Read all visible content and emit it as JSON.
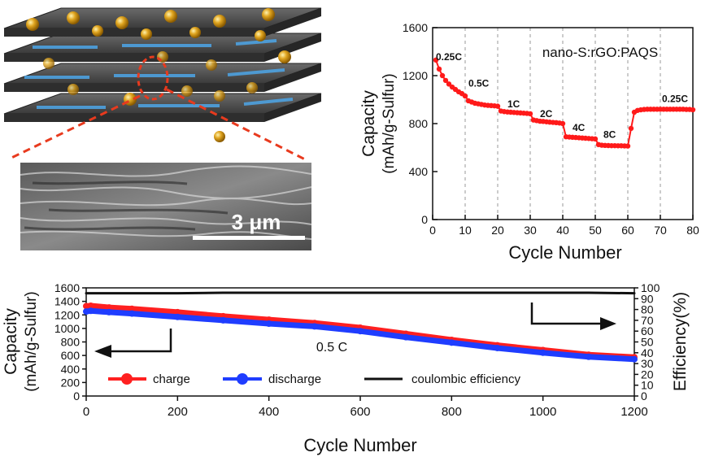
{
  "sem": {
    "scale_label": "3 μm"
  },
  "chart_data": [
    {
      "type": "line",
      "title": "",
      "annotation": "nano-S:rGO:PAQS",
      "xlabel": "Cycle Number",
      "ylabel_line1": "Capacity",
      "ylabel_line2": "(mAh/g-Sulfur)",
      "xlim": [
        0,
        80
      ],
      "ylim": [
        0,
        1600
      ],
      "xticks": [
        0,
        10,
        20,
        30,
        40,
        50,
        60,
        70,
        80
      ],
      "yticks": [
        0,
        400,
        800,
        1200,
        1600
      ],
      "grid": false,
      "color": "#ff1a1a",
      "rate_dividers": [
        10,
        20,
        30,
        40,
        50,
        60,
        70
      ],
      "rate_labels": [
        {
          "text": "0.25C",
          "x": 1,
          "y": 1330
        },
        {
          "text": "0.5C",
          "x": 11,
          "y": 1110
        },
        {
          "text": "1C",
          "x": 23,
          "y": 935
        },
        {
          "text": "2C",
          "x": 33,
          "y": 855
        },
        {
          "text": "4C",
          "x": 43,
          "y": 740
        },
        {
          "text": "8C",
          "x": 52.5,
          "y": 680
        },
        {
          "text": "0.25C",
          "x": 70.5,
          "y": 980
        }
      ],
      "series": [
        {
          "x": [
            1,
            2,
            3,
            4,
            5,
            6,
            7,
            8,
            9,
            10,
            11,
            12,
            13,
            14,
            15,
            16,
            17,
            18,
            19,
            20,
            21,
            22,
            23,
            24,
            25,
            26,
            27,
            28,
            29,
            30,
            31,
            32,
            33,
            34,
            35,
            36,
            37,
            38,
            39,
            40,
            41,
            42,
            43,
            44,
            45,
            46,
            47,
            48,
            49,
            50,
            51,
            52,
            53,
            54,
            55,
            56,
            57,
            58,
            59,
            60,
            61,
            62,
            63,
            64,
            65,
            66,
            67,
            68,
            69,
            70,
            71,
            72,
            73,
            74,
            75,
            76,
            77,
            78,
            79,
            80
          ],
          "y": [
            1330,
            1255,
            1200,
            1160,
            1130,
            1105,
            1085,
            1065,
            1050,
            1030,
            990,
            980,
            970,
            965,
            960,
            955,
            952,
            950,
            948,
            945,
            905,
            900,
            897,
            895,
            893,
            891,
            889,
            887,
            885,
            882,
            830,
            825,
            820,
            818,
            815,
            812,
            810,
            808,
            805,
            800,
            690,
            688,
            686,
            684,
            682,
            680,
            678,
            676,
            674,
            672,
            625,
            620,
            618,
            617,
            616,
            616,
            615,
            615,
            614,
            613,
            760,
            895,
            910,
            915,
            918,
            920,
            920,
            920,
            920,
            920,
            920,
            920,
            920,
            920,
            920,
            920,
            920,
            918,
            918,
            915
          ]
        }
      ]
    },
    {
      "type": "line",
      "title": "",
      "annotation": "0.5 C",
      "xlabel": "Cycle Number",
      "ylabel_left_line1": "Capacity",
      "ylabel_left_line2": "(mAh/g-Sulfur)",
      "ylabel_right": "Efficiency(%)",
      "xlim": [
        0,
        1200
      ],
      "ylim_left": [
        0,
        1600
      ],
      "ylim_right": [
        0,
        100
      ],
      "xticks": [
        0,
        200,
        400,
        600,
        800,
        1000,
        1200
      ],
      "yticks_left": [
        0,
        200,
        400,
        600,
        800,
        1000,
        1200,
        1400,
        1600
      ],
      "yticks_right": [
        0,
        10,
        20,
        30,
        40,
        50,
        60,
        70,
        80,
        90,
        100
      ],
      "grid": false,
      "legend_position": "bottom",
      "series": [
        {
          "name": "charge",
          "axis": "left",
          "color": "#ff2020",
          "x": [
            0,
            10,
            50,
            100,
            200,
            300,
            400,
            500,
            600,
            700,
            800,
            900,
            1000,
            1100,
            1200
          ],
          "y": [
            1330,
            1335,
            1310,
            1290,
            1240,
            1180,
            1130,
            1080,
            1010,
            920,
            830,
            750,
            680,
            610,
            575
          ]
        },
        {
          "name": "discharge",
          "axis": "left",
          "color": "#1f3dff",
          "x": [
            0,
            10,
            50,
            100,
            200,
            300,
            400,
            500,
            600,
            700,
            800,
            900,
            1000,
            1100,
            1200
          ],
          "y": [
            1250,
            1260,
            1240,
            1220,
            1170,
            1120,
            1070,
            1030,
            960,
            870,
            790,
            710,
            640,
            580,
            545
          ]
        },
        {
          "name": "coulombic efficiency",
          "axis": "right",
          "color": "#111111",
          "x": [
            0,
            100,
            200,
            300,
            400,
            500,
            600,
            700,
            800,
            900,
            1000,
            1100,
            1200
          ],
          "y": [
            95,
            95,
            95,
            95.5,
            95.5,
            95.5,
            95.5,
            95.5,
            95.5,
            95.5,
            95.5,
            95.5,
            95
          ]
        }
      ]
    }
  ]
}
